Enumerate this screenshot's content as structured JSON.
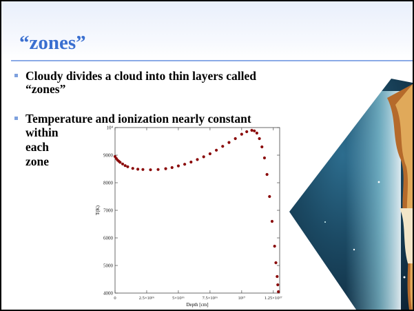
{
  "slide": {
    "title": "“zones”",
    "bullets": [
      {
        "text": "Cloudy divides a cloud into thin layers called “zones”"
      },
      {
        "text": "Temperature and ionization nearly constant"
      }
    ],
    "continuation_lines": [
      "within",
      "each",
      "zone"
    ]
  },
  "colors": {
    "title": "#3a6fd0",
    "bullet_marker": "#7ea1de",
    "data_points": "#8b0b0b"
  },
  "chart_data": {
    "type": "scatter",
    "xlabel": "Depth [cm]",
    "ylabel": "T(K)",
    "xlim": [
      0,
      1.3e+17
    ],
    "ylim": [
      4000,
      10000
    ],
    "x_ticks": [
      {
        "value": 0,
        "label": "0"
      },
      {
        "value": 2.5e+16,
        "label": "2.5×10¹⁶"
      },
      {
        "value": 5e+16,
        "label": "5×10¹⁶"
      },
      {
        "value": 7.5e+16,
        "label": "7.5×10¹⁶"
      },
      {
        "value": 1e+17,
        "label": "10¹⁷"
      },
      {
        "value": 1.25e+17,
        "label": "1.25×10¹⁷"
      }
    ],
    "y_ticks": [
      {
        "value": 4000,
        "label": "4000"
      },
      {
        "value": 5000,
        "label": "5000"
      },
      {
        "value": 6000,
        "label": "6000"
      },
      {
        "value": 7000,
        "label": "7000"
      },
      {
        "value": 8000,
        "label": "8000"
      },
      {
        "value": 9000,
        "label": "9000"
      },
      {
        "value": 10000,
        "label": "10⁴"
      }
    ],
    "x": [
      0,
      1000000000000000.0,
      2000000000000000.0,
      3000000000000000.0,
      4000000000000000.0,
      6000000000000000.0,
      8000000000000000.0,
      1e+16,
      1.4e+16,
      1.8e+16,
      2.2e+16,
      2.8e+16,
      3.4e+16,
      4e+16,
      4.5e+16,
      5e+16,
      5.5e+16,
      6e+16,
      6.5e+16,
      7e+16,
      7.5e+16,
      8e+16,
      8.5e+16,
      9e+16,
      9.5e+16,
      1e+17,
      1.04e+17,
      1.08e+17,
      1.1e+17,
      1.12e+17,
      1.14e+17,
      1.16e+17,
      1.18e+17,
      1.2e+17,
      1.22e+17,
      1.24e+17,
      1.26e+17,
      1.27e+17,
      1.28e+17,
      1.285e+17,
      1.29e+17
    ],
    "y": [
      8950,
      8880,
      8820,
      8780,
      8740,
      8680,
      8620,
      8580,
      8520,
      8490,
      8480,
      8470,
      8480,
      8510,
      8550,
      8610,
      8670,
      8750,
      8840,
      8940,
      9050,
      9180,
      9320,
      9460,
      9600,
      9760,
      9850,
      9900,
      9880,
      9800,
      9600,
      9300,
      8900,
      8300,
      7500,
      6600,
      5700,
      5100,
      4600,
      4300,
      4050
    ]
  }
}
